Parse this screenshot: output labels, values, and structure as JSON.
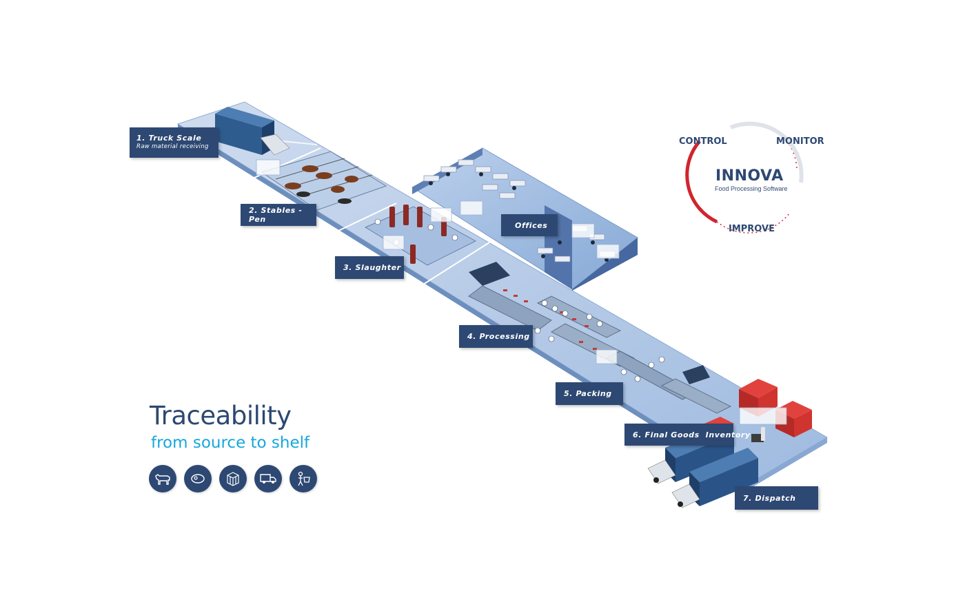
{
  "stages": {
    "truck_scale": {
      "label": "1. Truck Scale",
      "sub": "Raw material receiving"
    },
    "stables": {
      "label": "2. Stables - Pen"
    },
    "slaughter": {
      "label": "3. Slaughter"
    },
    "offices": {
      "label": "Offices"
    },
    "processing": {
      "label": "4. Processing"
    },
    "packing": {
      "label": "5. Packing"
    },
    "final_goods": {
      "label": "6. Final Goods  Inventory"
    },
    "dispatch": {
      "label": "7. Dispatch"
    }
  },
  "headline": {
    "title": "Traceability",
    "subtitle": "from source to shelf"
  },
  "icons": [
    "cow-icon",
    "meat-cut-icon",
    "pallet-icon",
    "delivery-truck-icon",
    "shopper-icon"
  ],
  "cycle": {
    "control": "CONTROL",
    "monitor": "MONITOR",
    "improve": "IMPROVE",
    "brand": "INNOVA",
    "tagline": "Food Processing Software"
  },
  "colors": {
    "navy": "#2d4872",
    "cyan": "#17a7dc",
    "accent_red": "#d0252f",
    "floor": "#a9c3e0",
    "floor_dark": "#7f9fc8"
  }
}
